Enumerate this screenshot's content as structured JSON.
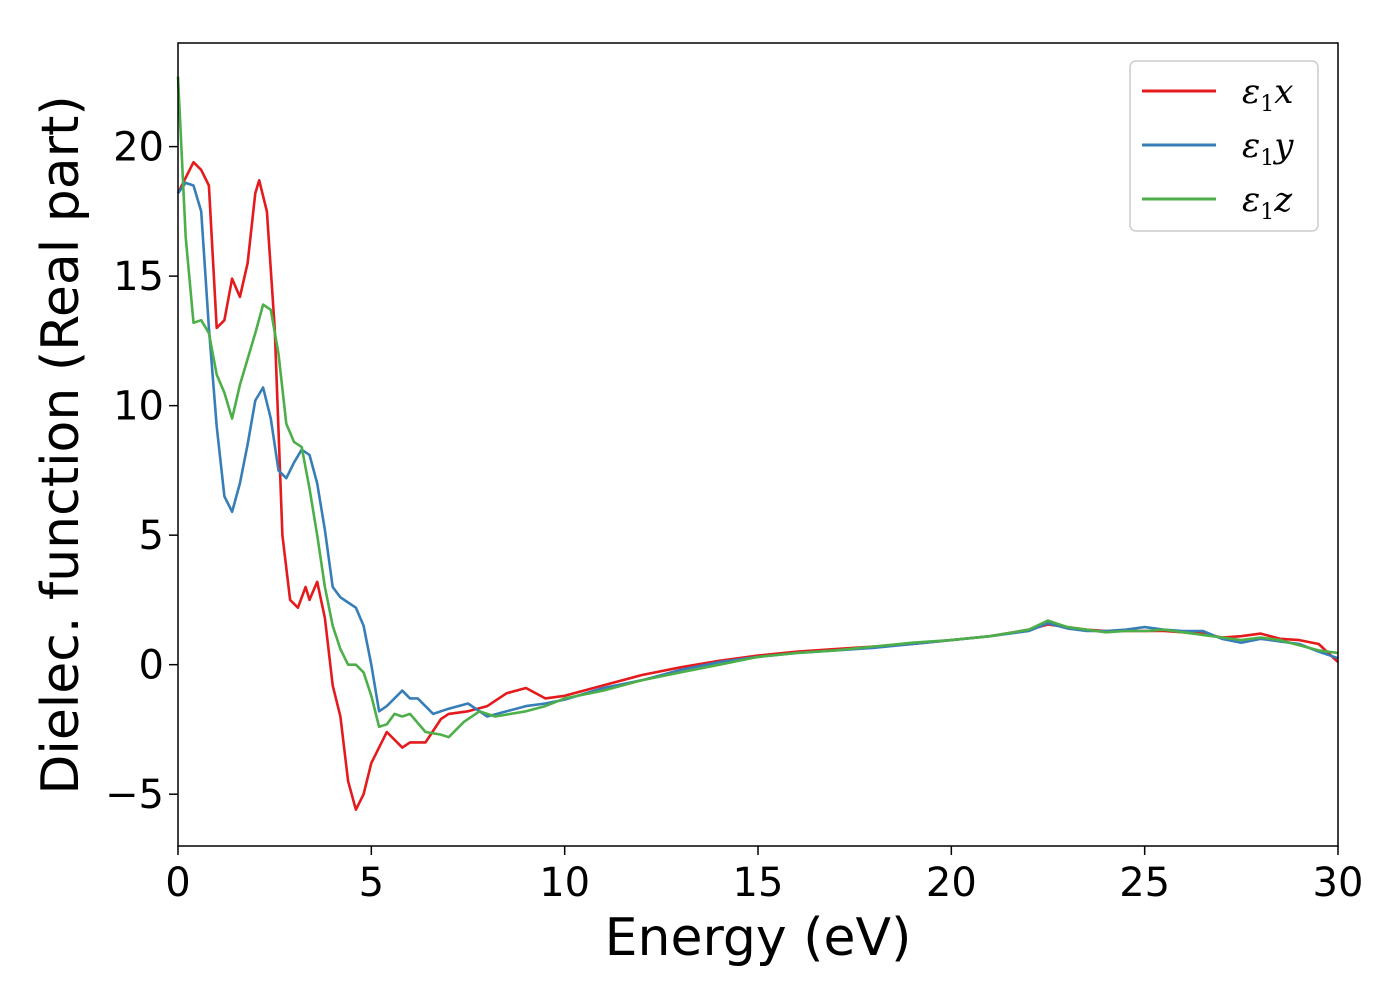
{
  "chart_data": {
    "type": "line",
    "title": "",
    "xlabel": "Energy (eV)",
    "ylabel": "Dielec. function (Real part)",
    "xlim": [
      0,
      30
    ],
    "ylim": [
      -7,
      24
    ],
    "xticks": [
      0,
      5,
      10,
      15,
      20,
      25,
      30
    ],
    "yticks": [
      -5,
      0,
      5,
      10,
      15,
      20
    ],
    "xtick_labels": [
      "0",
      "5",
      "10",
      "15",
      "20",
      "25",
      "30"
    ],
    "ytick_labels": [
      "−5",
      "0",
      "5",
      "10",
      "15",
      "20"
    ],
    "grid": false,
    "legend_position": "top-right",
    "series": [
      {
        "name": "ε1x",
        "legend_base": "ε",
        "legend_sub": "1",
        "legend_tail": "x",
        "color": "#e41a1c",
        "x": [
          0,
          0.2,
          0.4,
          0.6,
          0.8,
          1.0,
          1.2,
          1.4,
          1.6,
          1.8,
          2.0,
          2.1,
          2.3,
          2.5,
          2.7,
          2.9,
          3.1,
          3.3,
          3.4,
          3.6,
          3.8,
          4.0,
          4.2,
          4.4,
          4.6,
          4.8,
          5.0,
          5.4,
          5.8,
          6.0,
          6.4,
          6.8,
          7.0,
          7.5,
          8.0,
          8.5,
          9.0,
          9.5,
          10,
          11,
          12,
          13,
          14,
          15,
          16,
          17,
          18,
          19,
          20,
          21,
          22,
          22.5,
          23,
          23.5,
          24,
          24.5,
          25,
          25.5,
          26,
          26.5,
          27,
          27.5,
          28,
          28.5,
          29,
          29.5,
          30
        ],
        "y": [
          18.2,
          18.8,
          19.4,
          19.1,
          18.5,
          13.0,
          13.3,
          14.9,
          14.2,
          15.5,
          18.2,
          18.7,
          17.5,
          13.0,
          5.0,
          2.5,
          2.2,
          3.0,
          2.5,
          3.2,
          1.8,
          -0.8,
          -2.0,
          -4.5,
          -5.6,
          -5.0,
          -3.8,
          -2.6,
          -3.2,
          -3.0,
          -3.0,
          -2.1,
          -1.9,
          -1.8,
          -1.6,
          -1.1,
          -0.9,
          -1.3,
          -1.2,
          -0.8,
          -0.4,
          -0.1,
          0.15,
          0.35,
          0.5,
          0.6,
          0.7,
          0.8,
          0.95,
          1.1,
          1.35,
          1.55,
          1.45,
          1.35,
          1.3,
          1.3,
          1.3,
          1.3,
          1.25,
          1.2,
          1.05,
          1.1,
          1.2,
          1.0,
          0.95,
          0.8,
          0.1
        ]
      },
      {
        "name": "ε1y",
        "legend_base": "ε",
        "legend_sub": "1",
        "legend_tail": "y",
        "color": "#377eb8",
        "x": [
          0,
          0.2,
          0.4,
          0.6,
          0.8,
          1.0,
          1.2,
          1.4,
          1.6,
          1.8,
          2.0,
          2.2,
          2.4,
          2.6,
          2.8,
          3.0,
          3.2,
          3.4,
          3.6,
          3.8,
          4.0,
          4.2,
          4.4,
          4.6,
          4.8,
          5.0,
          5.2,
          5.4,
          5.8,
          6.0,
          6.2,
          6.6,
          7.0,
          7.5,
          8.0,
          8.5,
          9.0,
          9.5,
          10,
          11,
          12,
          13,
          14,
          15,
          16,
          17,
          18,
          19,
          20,
          21,
          22,
          22.5,
          23,
          23.5,
          24,
          24.5,
          25,
          25.5,
          26,
          26.5,
          27,
          27.5,
          28,
          28.5,
          29,
          29.5,
          30
        ],
        "y": [
          18.2,
          18.6,
          18.5,
          17.5,
          13.0,
          9.2,
          6.5,
          5.9,
          7.0,
          8.5,
          10.2,
          10.7,
          9.5,
          7.5,
          7.2,
          7.8,
          8.3,
          8.1,
          7.0,
          5.2,
          3.0,
          2.6,
          2.4,
          2.2,
          1.5,
          0.0,
          -1.8,
          -1.6,
          -1.0,
          -1.3,
          -1.3,
          -1.9,
          -1.7,
          -1.5,
          -2.0,
          -1.8,
          -1.6,
          -1.5,
          -1.35,
          -0.9,
          -0.6,
          -0.2,
          0.1,
          0.3,
          0.45,
          0.55,
          0.65,
          0.8,
          0.95,
          1.1,
          1.3,
          1.6,
          1.4,
          1.3,
          1.3,
          1.35,
          1.45,
          1.35,
          1.3,
          1.3,
          1.0,
          0.85,
          1.0,
          0.9,
          0.8,
          0.5,
          0.25
        ]
      },
      {
        "name": "ε1z",
        "legend_base": "ε",
        "legend_sub": "1",
        "legend_tail": "z",
        "color": "#4daf4a",
        "x": [
          0,
          0.2,
          0.4,
          0.6,
          0.8,
          1.0,
          1.2,
          1.4,
          1.6,
          1.8,
          2.0,
          2.2,
          2.4,
          2.6,
          2.8,
          3.0,
          3.2,
          3.4,
          3.6,
          3.8,
          4.0,
          4.2,
          4.4,
          4.6,
          4.8,
          5.0,
          5.2,
          5.4,
          5.6,
          5.8,
          6.0,
          6.4,
          6.8,
          7.0,
          7.4,
          7.8,
          8.2,
          8.6,
          9.0,
          9.5,
          10,
          11,
          12,
          13,
          14,
          15,
          16,
          17,
          18,
          19,
          20,
          21,
          22,
          22.5,
          23,
          23.5,
          24,
          24.5,
          25,
          25.5,
          26,
          26.5,
          27,
          27.5,
          28,
          28.5,
          29,
          29.5,
          30
        ],
        "y": [
          22.7,
          16.5,
          13.2,
          13.3,
          12.8,
          11.2,
          10.5,
          9.5,
          10.8,
          11.8,
          12.8,
          13.9,
          13.7,
          12.0,
          9.3,
          8.6,
          8.4,
          6.8,
          5.0,
          3.0,
          1.5,
          0.6,
          0.0,
          0.0,
          -0.3,
          -1.2,
          -2.4,
          -2.3,
          -1.9,
          -2.0,
          -1.9,
          -2.6,
          -2.7,
          -2.8,
          -2.2,
          -1.8,
          -2.0,
          -1.9,
          -1.8,
          -1.6,
          -1.3,
          -1.0,
          -0.6,
          -0.3,
          0.0,
          0.3,
          0.45,
          0.55,
          0.7,
          0.85,
          0.95,
          1.1,
          1.35,
          1.7,
          1.45,
          1.35,
          1.25,
          1.3,
          1.3,
          1.35,
          1.25,
          1.15,
          1.05,
          0.95,
          1.05,
          0.95,
          0.75,
          0.55,
          0.45
        ]
      }
    ]
  }
}
